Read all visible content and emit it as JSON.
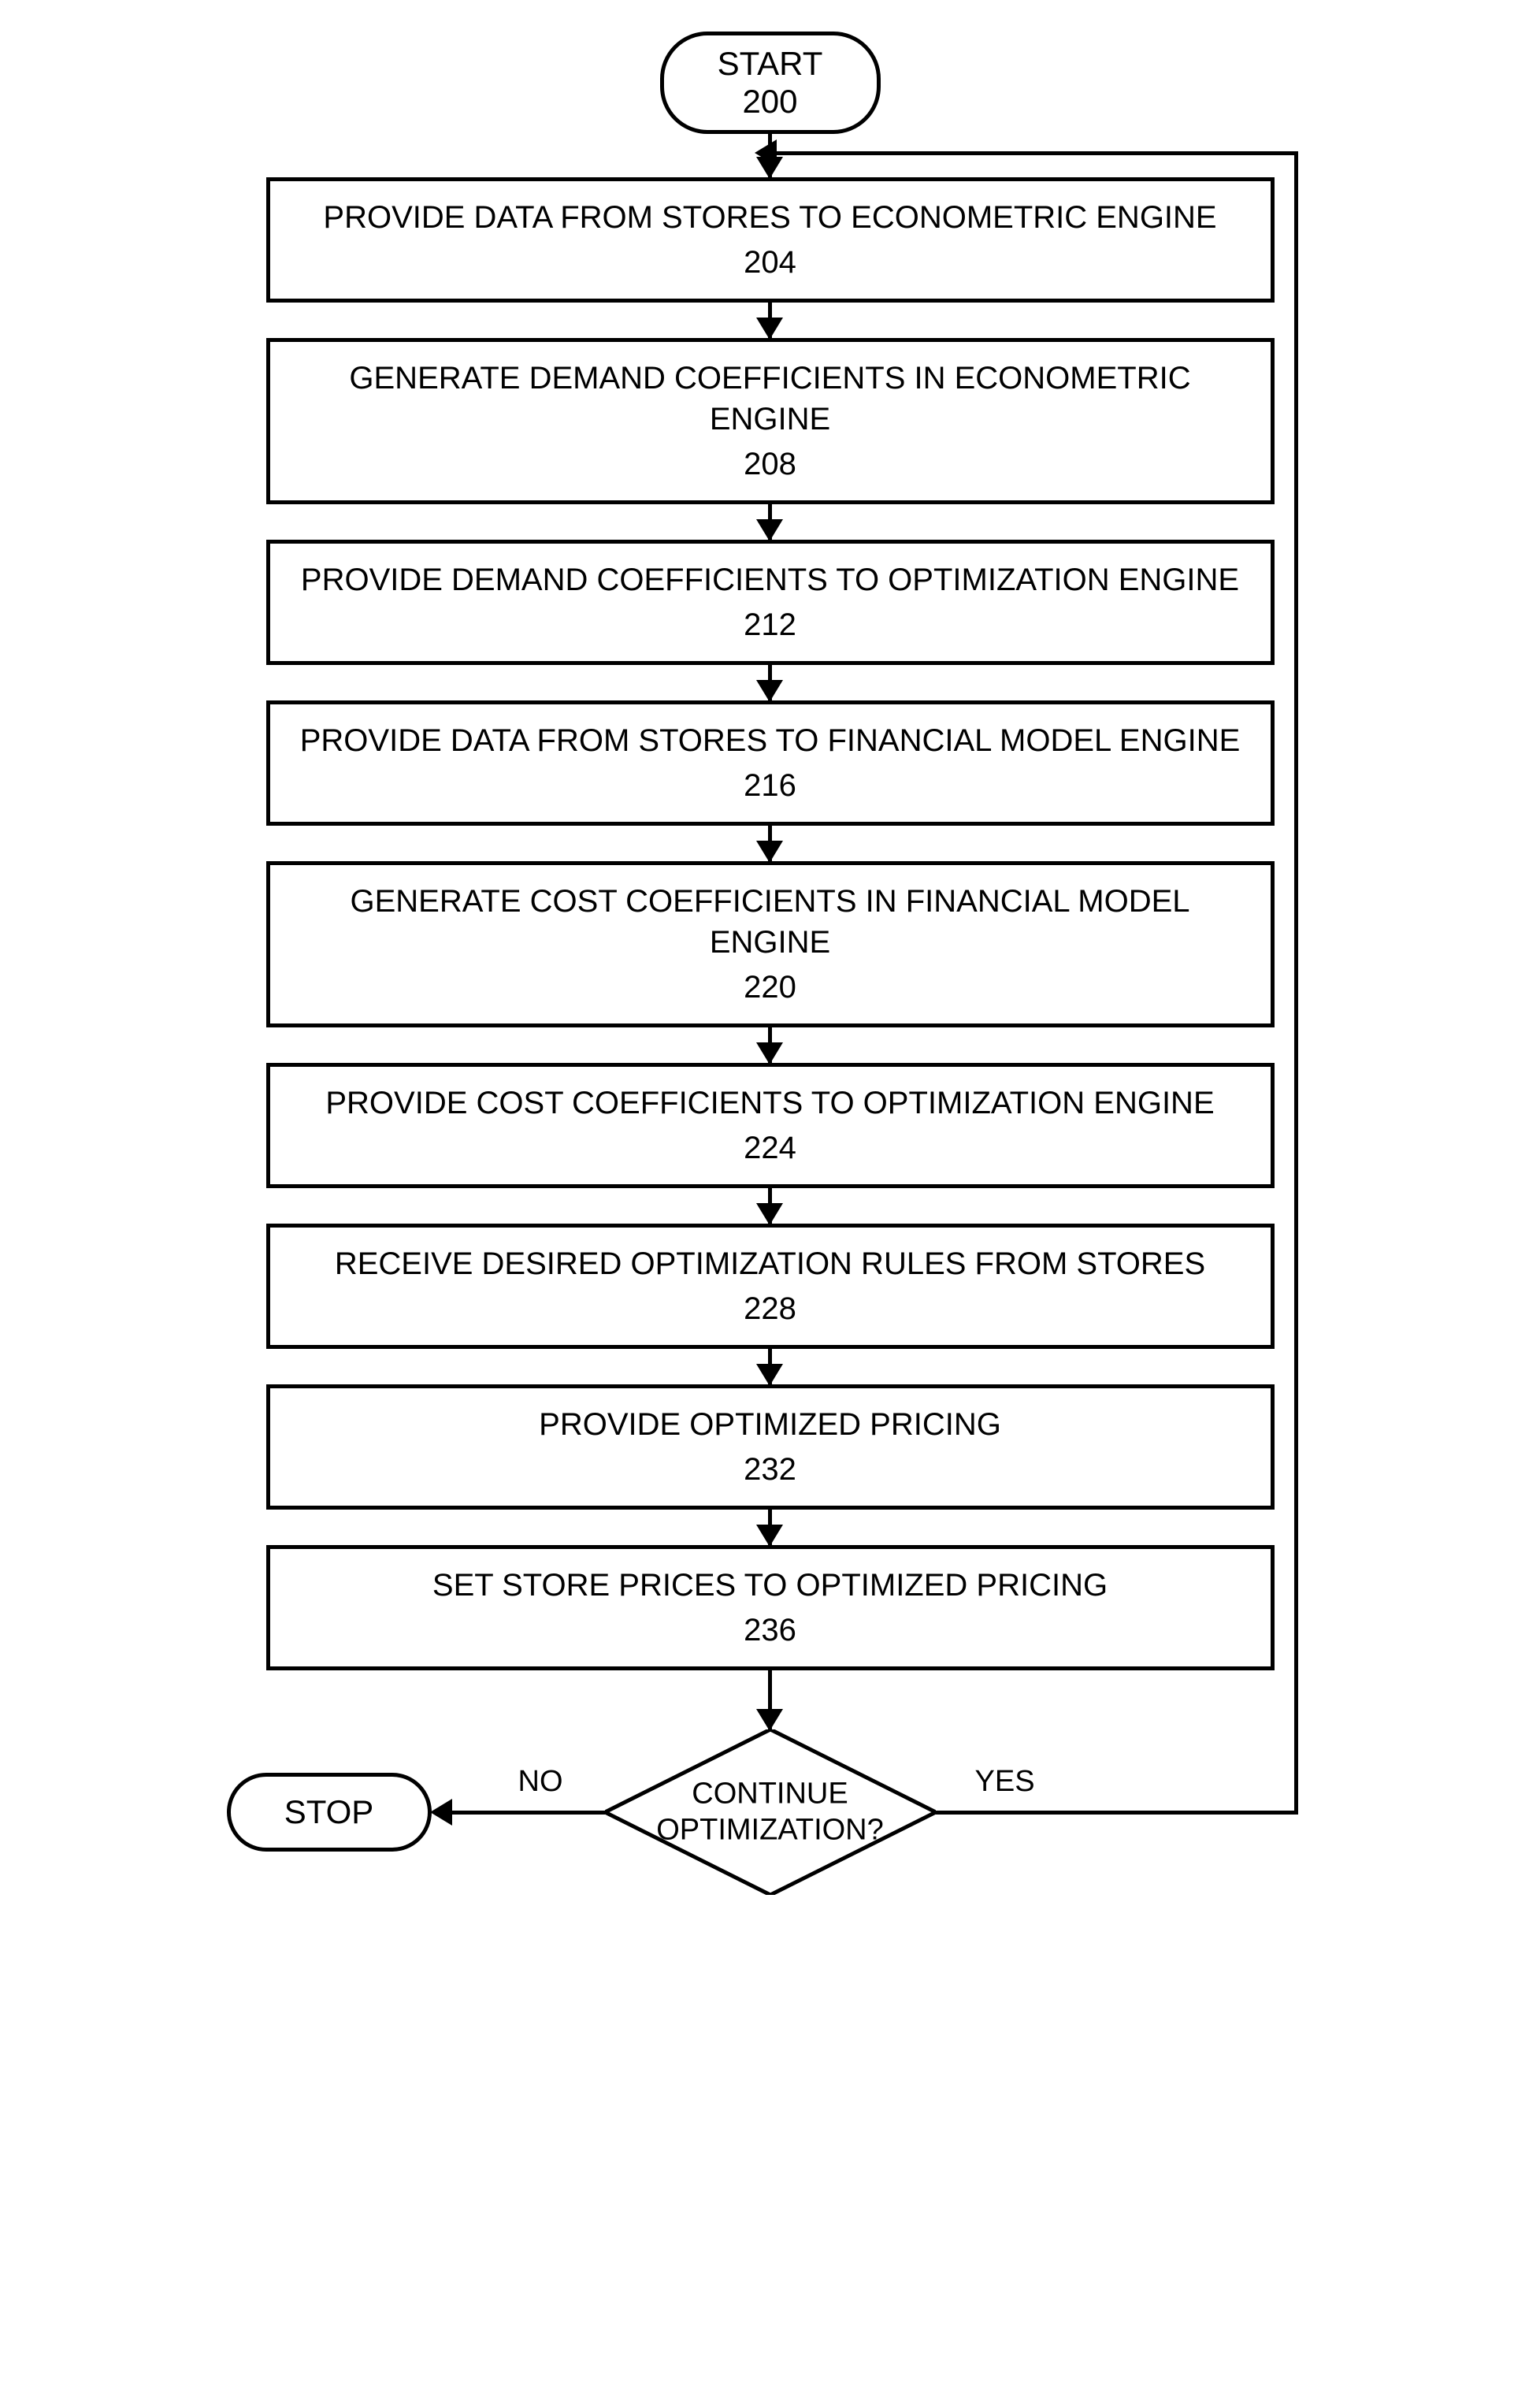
{
  "flowchart": {
    "type": "flowchart",
    "background_color": "#ffffff",
    "stroke_color": "#000000",
    "stroke_width": 5,
    "font_family": "Arial",
    "title_fontsize": 42,
    "process_fontsize": 40,
    "decision_fontsize": 38,
    "label_fontsize": 38,
    "start": {
      "label": "START",
      "number": "200"
    },
    "stop": {
      "label": "STOP"
    },
    "processes": [
      {
        "label": "PROVIDE DATA FROM STORES TO ECONOMETRIC ENGINE",
        "number": "204"
      },
      {
        "label": "GENERATE DEMAND COEFFICIENTS IN ECONOMETRIC ENGINE",
        "number": "208"
      },
      {
        "label": "PROVIDE DEMAND COEFFICIENTS TO OPTIMIZATION ENGINE",
        "number": "212"
      },
      {
        "label": "PROVIDE DATA FROM STORES TO FINANCIAL MODEL ENGINE",
        "number": "216"
      },
      {
        "label": "GENERATE COST COEFFICIENTS IN FINANCIAL MODEL ENGINE",
        "number": "220"
      },
      {
        "label": "PROVIDE COST COEFFICIENTS TO OPTIMIZATION ENGINE",
        "number": "224"
      },
      {
        "label": "RECEIVE DESIRED OPTIMIZATION RULES FROM STORES",
        "number": "228"
      },
      {
        "label": "PROVIDE OPTIMIZED PRICING",
        "number": "232"
      },
      {
        "label": "SET STORE PRICES TO OPTIMIZED PRICING",
        "number": "236"
      }
    ],
    "decision": {
      "label_line1": "CONTINUE",
      "label_line2": "OPTIMIZATION?",
      "no_label": "NO",
      "yes_label": "YES"
    }
  }
}
